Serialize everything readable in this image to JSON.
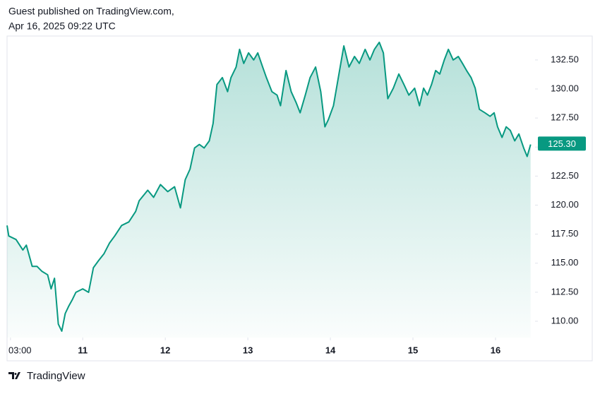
{
  "header": {
    "line1": "Guest published on TradingView.com,",
    "line2": "Apr 16, 2025 09:22 UTC"
  },
  "footer": {
    "brand": "TradingView"
  },
  "chart_data": {
    "type": "area",
    "color": "#089981",
    "x": [
      -1,
      -0.5,
      1.6,
      3.6,
      4.6,
      6.3,
      7.7,
      9.1,
      10.8,
      11.8,
      12.8,
      13.9,
      14.9,
      15.9,
      16.9,
      18,
      19,
      21,
      22.7,
      24.1,
      25.6,
      27.2,
      28.8,
      30.3,
      32.3,
      34.4,
      36.4,
      37.4,
      39.9,
      41.6,
      43.6,
      45.7,
      47.7,
      49.4,
      50.8,
      52.2,
      53.5,
      54.9,
      56.3,
      57.8,
      58.9,
      60,
      61.6,
      63.1,
      64.1,
      65.6,
      66.6,
      67.8,
      69.2,
      70.7,
      71.9,
      73.3,
      74.4,
      76,
      77.5,
      78.5,
      80.1,
      81.6,
      83,
      84.2,
      85.7,
      87.1,
      88.7,
      90.2,
      91.4,
      92.4,
      93.9,
      95.3,
      96.9,
      98.4,
      100,
      101.4,
      103.1,
      104.5,
      105.8,
      107.2,
      108.4,
      109.7,
      111.3,
      112.9,
      114.4,
      115.8,
      117.5,
      118.9,
      120.1,
      121.2,
      122.4,
      123.6,
      124.8,
      126.1,
      127.3,
      128.7,
      130.2,
      131.4,
      132.6,
      133.9,
      135.1,
      136.3,
      137.9,
      139.4,
      140.6,
      141.6,
      142.9,
      144.1,
      145.3,
      146.6,
      147.8,
      149.2,
      150.2,
      151.2
    ],
    "values": [
      118.25,
      117.34,
      117.04,
      116.13,
      116.55,
      114.73,
      114.73,
      114.31,
      114.0,
      112.79,
      113.7,
      109.76,
      109.15,
      110.67,
      111.28,
      111.88,
      112.49,
      112.79,
      112.49,
      114.61,
      115.22,
      115.82,
      116.74,
      117.34,
      118.25,
      118.55,
      119.46,
      120.37,
      121.28,
      120.67,
      121.77,
      121.16,
      121.58,
      119.76,
      122.19,
      123.1,
      124.92,
      125.22,
      124.92,
      125.53,
      127.04,
      130.38,
      130.98,
      129.77,
      130.98,
      131.89,
      133.41,
      132.2,
      133.11,
      132.5,
      133.11,
      131.89,
      130.98,
      129.77,
      129.47,
      128.56,
      131.59,
      129.77,
      128.86,
      127.95,
      129.47,
      130.98,
      131.89,
      129.77,
      126.74,
      127.35,
      128.56,
      130.98,
      133.71,
      131.89,
      132.8,
      132.2,
      133.41,
      132.5,
      133.41,
      134.02,
      133.11,
      129.16,
      130.07,
      131.29,
      130.38,
      129.47,
      130.07,
      128.56,
      130.07,
      129.47,
      130.38,
      131.59,
      131.29,
      132.5,
      133.41,
      132.5,
      132.8,
      132.2,
      131.59,
      130.98,
      130.07,
      128.25,
      127.95,
      127.65,
      127.95,
      126.74,
      125.83,
      126.74,
      126.44,
      125.53,
      126.13,
      124.92,
      124.19,
      125.22
    ],
    "xlim": [
      -1,
      152.5
    ],
    "xticks": [
      {
        "value": 0,
        "label": "03:00"
      },
      {
        "value": 21,
        "label": "11"
      },
      {
        "value": 45,
        "label": "12"
      },
      {
        "value": 69,
        "label": "13"
      },
      {
        "value": 93,
        "label": "14"
      },
      {
        "value": 117,
        "label": "15"
      },
      {
        "value": 141,
        "label": "16"
      }
    ],
    "ylim": [
      108.6,
      134.5
    ],
    "yticks": [
      {
        "value": 110,
        "label": "110.00"
      },
      {
        "value": 112.5,
        "label": "112.50"
      },
      {
        "value": 115,
        "label": "115.00"
      },
      {
        "value": 117.5,
        "label": "117.50"
      },
      {
        "value": 120,
        "label": "120.00"
      },
      {
        "value": 122.5,
        "label": "122.50"
      },
      {
        "value": 125,
        "label": "125.00"
      },
      {
        "value": 127.5,
        "label": "127.50"
      },
      {
        "value": 130,
        "label": "130.00"
      },
      {
        "value": 132.5,
        "label": "132.50"
      }
    ],
    "last_price": {
      "value": 125.3,
      "label": "125.30"
    }
  }
}
